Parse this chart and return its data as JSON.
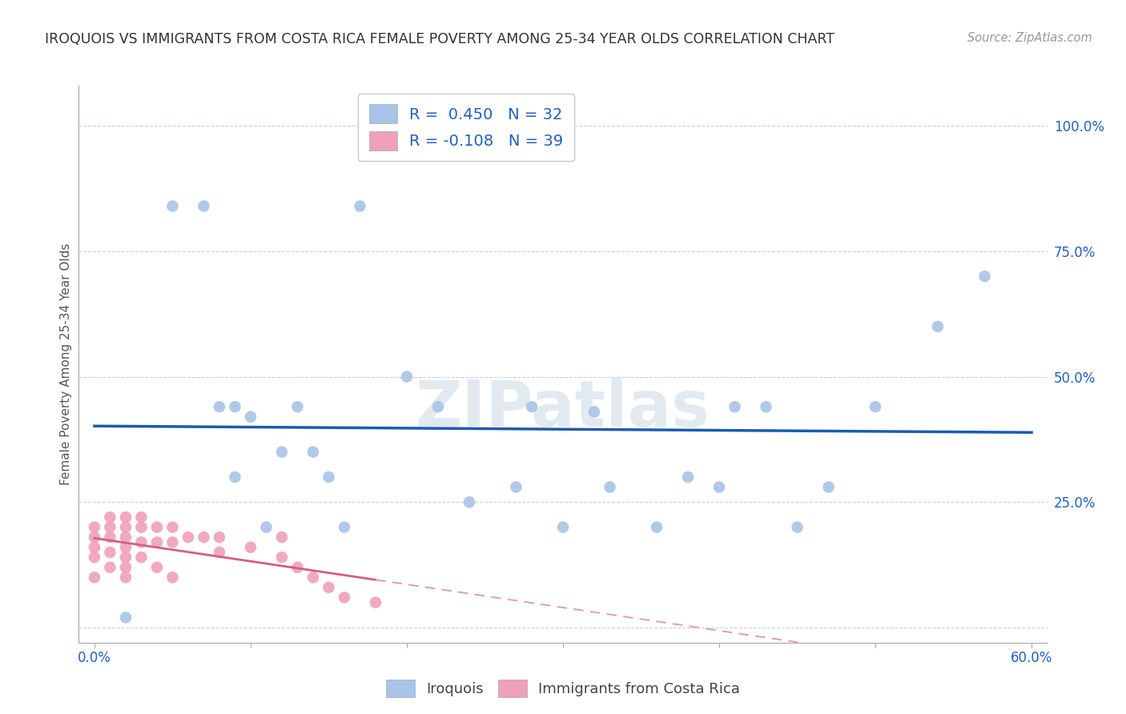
{
  "title": "IROQUOIS VS IMMIGRANTS FROM COSTA RICA FEMALE POVERTY AMONG 25-34 YEAR OLDS CORRELATION CHART",
  "source": "Source: ZipAtlas.com",
  "ylabel": "Female Poverty Among 25-34 Year Olds",
  "xlim": [
    0.0,
    0.6
  ],
  "ylim": [
    0.0,
    1.05
  ],
  "ytick_vals": [
    0.0,
    0.25,
    0.5,
    0.75,
    1.0
  ],
  "ytick_labels": [
    "",
    "25.0%",
    "50.0%",
    "75.0%",
    "100.0%"
  ],
  "xtick_vals": [
    0.0,
    0.1,
    0.2,
    0.3,
    0.4,
    0.5,
    0.6
  ],
  "xtick_labels": [
    "0.0%",
    "",
    "",
    "",
    "",
    "",
    "60.0%"
  ],
  "R_iroquois": 0.45,
  "N_iroquois": 32,
  "R_costa_rica": -0.108,
  "N_costa_rica": 39,
  "iroquois_color": "#a8c4e8",
  "costa_rica_color": "#f0a0b8",
  "iroquois_line_color": "#1a5cb0",
  "costa_rica_line_solid_color": "#d06080",
  "costa_rica_line_dash_color": "#e0a0b8",
  "watermark_color": "#d0dce8",
  "iroquois_x": [
    0.02,
    0.05,
    0.07,
    0.08,
    0.09,
    0.09,
    0.1,
    0.11,
    0.12,
    0.13,
    0.14,
    0.15,
    0.16,
    0.17,
    0.2,
    0.22,
    0.24,
    0.27,
    0.28,
    0.3,
    0.32,
    0.33,
    0.36,
    0.38,
    0.4,
    0.41,
    0.43,
    0.45,
    0.47,
    0.5,
    0.54,
    0.57
  ],
  "iroquois_y": [
    0.02,
    0.84,
    0.84,
    0.44,
    0.44,
    0.3,
    0.42,
    0.2,
    0.35,
    0.44,
    0.35,
    0.3,
    0.2,
    0.84,
    0.5,
    0.44,
    0.25,
    0.28,
    0.44,
    0.2,
    0.43,
    0.28,
    0.2,
    0.3,
    0.28,
    0.44,
    0.44,
    0.2,
    0.28,
    0.44,
    0.6,
    0.7
  ],
  "costa_rica_x": [
    0.0,
    0.0,
    0.0,
    0.0,
    0.0,
    0.01,
    0.01,
    0.01,
    0.01,
    0.01,
    0.02,
    0.02,
    0.02,
    0.02,
    0.02,
    0.02,
    0.02,
    0.03,
    0.03,
    0.03,
    0.03,
    0.04,
    0.04,
    0.04,
    0.05,
    0.05,
    0.05,
    0.06,
    0.07,
    0.08,
    0.08,
    0.1,
    0.12,
    0.12,
    0.13,
    0.14,
    0.15,
    0.16,
    0.18
  ],
  "costa_rica_y": [
    0.2,
    0.18,
    0.16,
    0.14,
    0.1,
    0.22,
    0.2,
    0.18,
    0.15,
    0.12,
    0.22,
    0.2,
    0.18,
    0.16,
    0.14,
    0.12,
    0.1,
    0.22,
    0.2,
    0.17,
    0.14,
    0.2,
    0.17,
    0.12,
    0.2,
    0.17,
    0.1,
    0.18,
    0.18,
    0.18,
    0.15,
    0.16,
    0.18,
    0.14,
    0.12,
    0.1,
    0.08,
    0.06,
    0.05
  ]
}
